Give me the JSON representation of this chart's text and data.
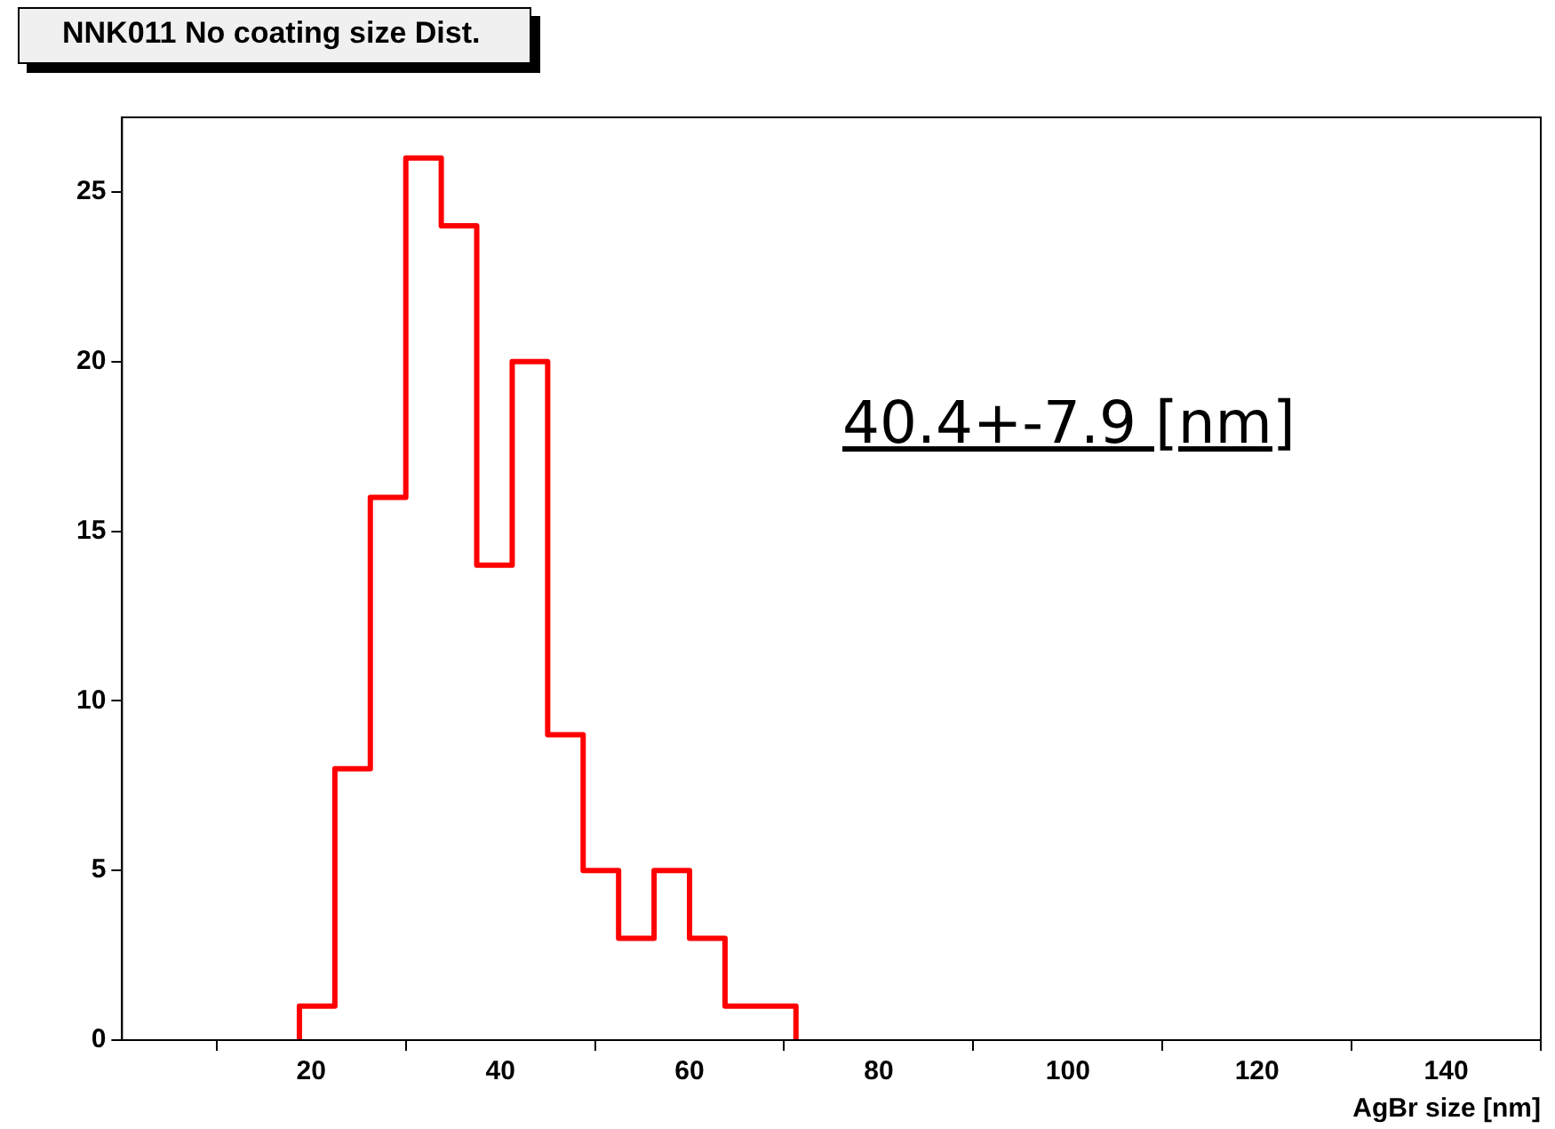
{
  "chart_data": {
    "type": "histogram",
    "title": "NNK011 No coating size Dist.",
    "xlabel": "AgBr size [nm]",
    "bins": [
      18.75,
      22.5,
      26.25,
      30,
      33.75,
      37.5,
      41.25,
      45,
      48.75,
      52.5,
      56.25,
      60,
      63.75,
      67.5,
      71.25
    ],
    "values": [
      1,
      8,
      16,
      26,
      24,
      14,
      20,
      9,
      5,
      3,
      5,
      3,
      1,
      1
    ],
    "color": "#ff0000",
    "xlim": [
      0,
      150
    ],
    "xticks": [
      20,
      40,
      60,
      80,
      100,
      120,
      140
    ],
    "ylim": [
      0,
      27.2
    ],
    "yticks": [
      0,
      5,
      10,
      15,
      20,
      25
    ],
    "annotations": [
      "40.4+-7.9 [nm]"
    ],
    "grid": false,
    "legend": false
  }
}
